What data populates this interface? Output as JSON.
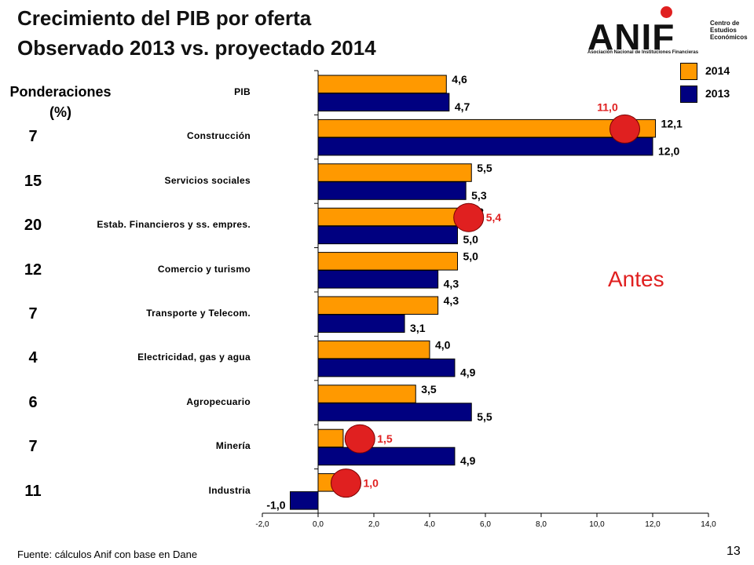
{
  "header": {
    "title_line1": "Crecimiento del PIB por oferta",
    "title_line2": "Observado 2013 vs. proyectado 2014"
  },
  "logo": {
    "wordmark": "ANIF",
    "side_text": [
      "Centro de",
      "Estudios",
      "Económicos"
    ],
    "subtitle": "Asociación Nacional de Instituciones Financieras"
  },
  "weights": {
    "heading_line1": "Ponderaciones",
    "heading_line2": "(%)",
    "values": [
      "7",
      "15",
      "20",
      "12",
      "7",
      "4",
      "6",
      "7",
      "11"
    ]
  },
  "legend": {
    "items": [
      {
        "label": "2014",
        "color": "#FF9900"
      },
      {
        "label": "2013",
        "color": "#000080"
      }
    ]
  },
  "annotation": {
    "text": "Antes",
    "color": "#E02020"
  },
  "footer": {
    "source": "Fuente:   cálculos  Anif con base en Dane",
    "page": "13"
  },
  "chart_data": {
    "type": "bar",
    "orientation": "horizontal",
    "categories": [
      "PIB",
      "Construcción",
      "Servicios sociales",
      "Estab. Financieros y ss. empres.",
      "Comercio y turismo",
      "Transporte y Telecom.",
      "Electricidad, gas y agua",
      "Agropecuario",
      "Minería",
      "Industria"
    ],
    "series": [
      {
        "name": "2014",
        "color": "#FF9900",
        "values": [
          4.6,
          12.1,
          5.5,
          5.2,
          5.0,
          4.3,
          4.0,
          3.5,
          0.9,
          0.6
        ],
        "labels": [
          "4,6",
          "12,1",
          "5,5",
          "5,2",
          "5,0",
          "4,3",
          "4,0",
          "3,5",
          "0,9",
          "0,6"
        ]
      },
      {
        "name": "2013",
        "color": "#000080",
        "values": [
          4.7,
          12.0,
          5.3,
          5.0,
          4.3,
          3.1,
          4.9,
          5.5,
          4.9,
          -1.0
        ],
        "labels": [
          "4,7",
          "12,0",
          "5,3",
          "5,0",
          "4,3",
          "3,1",
          "4,9",
          "5,5",
          "4,9",
          "-1,0"
        ]
      }
    ],
    "previous_projection": [
      {
        "category": "Construcción",
        "value": 11.0,
        "label": "11,0"
      },
      {
        "category": "Estab. Financieros y ss. empres.",
        "value": 5.4,
        "label": "5,4"
      },
      {
        "category": "Minería",
        "value": 1.5,
        "label": "1,5"
      },
      {
        "category": "Industria",
        "value": 1.0,
        "label": "1,0"
      }
    ],
    "xlim": [
      -2.0,
      14.0
    ],
    "xticks": [
      -2.0,
      0.0,
      2.0,
      4.0,
      6.0,
      8.0,
      10.0,
      12.0,
      14.0
    ],
    "xtick_labels": [
      "-2,0",
      "0,0",
      "2,0",
      "4,0",
      "6,0",
      "8,0",
      "10,0",
      "12,0",
      "14,0"
    ],
    "grid": false,
    "legend_position": "top-right"
  }
}
